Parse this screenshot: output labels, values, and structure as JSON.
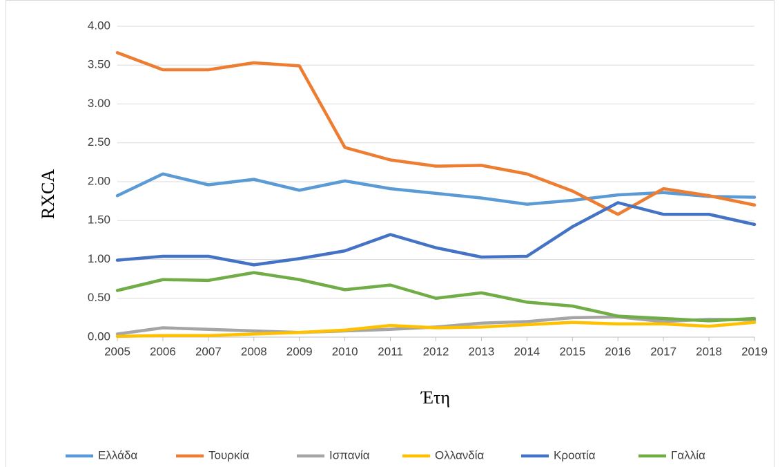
{
  "chart_data": {
    "type": "line",
    "y_label": "RXCA",
    "x_label": "Έτη",
    "categories": [
      "2005",
      "2006",
      "2007",
      "2008",
      "2009",
      "2010",
      "2011",
      "2012",
      "2013",
      "2014",
      "2015",
      "2016",
      "2017",
      "2018",
      "2019"
    ],
    "ylim": [
      0,
      4
    ],
    "yticks": [
      {
        "value": 0,
        "label": "0.00"
      },
      {
        "value": 0.5,
        "label": "0.50"
      },
      {
        "value": 1,
        "label": "1.00"
      },
      {
        "value": 1.5,
        "label": "1.50"
      },
      {
        "value": 2,
        "label": "2.00"
      },
      {
        "value": 2.5,
        "label": "2.50"
      },
      {
        "value": 3,
        "label": "3.00"
      },
      {
        "value": 3.5,
        "label": "3.50"
      },
      {
        "value": 4,
        "label": "4.00"
      }
    ],
    "grid": true,
    "legend": "bottom",
    "series": [
      {
        "name": "Ελλάδα",
        "color": "#5b9bd5",
        "values": [
          1.82,
          2.1,
          1.96,
          2.03,
          1.89,
          2.01,
          1.91,
          1.85,
          1.79,
          1.71,
          1.76,
          1.83,
          1.86,
          1.81,
          1.8
        ]
      },
      {
        "name": "Τουρκία",
        "color": "#ed7d31",
        "values": [
          3.66,
          3.44,
          3.44,
          3.53,
          3.49,
          2.44,
          2.28,
          2.2,
          2.21,
          2.1,
          1.88,
          1.58,
          1.91,
          1.82,
          1.7
        ]
      },
      {
        "name": "Ισπανία",
        "color": "#a5a5a5",
        "values": [
          0.04,
          0.12,
          0.1,
          0.08,
          0.06,
          0.08,
          0.1,
          0.13,
          0.18,
          0.2,
          0.25,
          0.26,
          0.2,
          0.23,
          0.22
        ]
      },
      {
        "name": "Ολλανδία",
        "color": "#ffc000",
        "values": [
          0.01,
          0.02,
          0.02,
          0.04,
          0.06,
          0.09,
          0.15,
          0.12,
          0.13,
          0.16,
          0.19,
          0.17,
          0.17,
          0.14,
          0.19
        ]
      },
      {
        "name": "Κροατία",
        "color": "#4472c4",
        "values": [
          0.99,
          1.04,
          1.04,
          0.93,
          1.01,
          1.11,
          1.32,
          1.15,
          1.03,
          1.04,
          1.42,
          1.73,
          1.58,
          1.58,
          1.45
        ]
      },
      {
        "name": "Γαλλία",
        "color": "#70ad47",
        "values": [
          0.6,
          0.74,
          0.73,
          0.83,
          0.74,
          0.61,
          0.67,
          0.5,
          0.57,
          0.45,
          0.4,
          0.27,
          0.24,
          0.21,
          0.24
        ]
      }
    ]
  }
}
